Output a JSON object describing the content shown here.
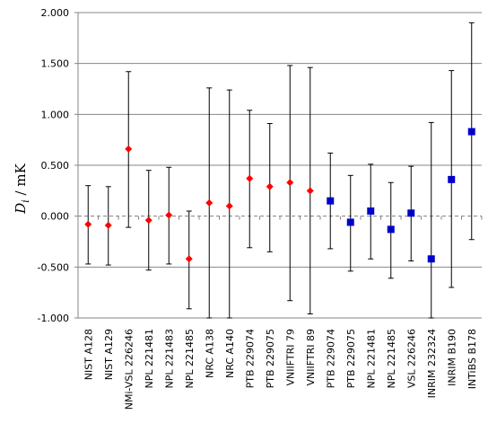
{
  "chart_data": {
    "type": "scatter",
    "ylabel_main": "D",
    "ylabel_sub": "i",
    "ylabel_unit": " / mK",
    "ylim": [
      -1.0,
      2.0
    ],
    "yticks": [
      2.0,
      1.5,
      1.0,
      0.5,
      0.0,
      -0.5,
      -1.0
    ],
    "ytick_labels": [
      "2.000",
      "1.500",
      "1.000",
      "0.500",
      "0.000",
      "-0.500",
      "-1.000"
    ],
    "grid": true,
    "zero_line": "dashed",
    "categories": [
      "NIST A128",
      "NIST A129",
      "NMi-VSL 226246",
      "NPL 221481",
      "NPL 221483",
      "NPL 221485",
      "NRC A138",
      "NRC A140",
      "PTB 229074",
      "PTB 229075",
      "VNIIFTRI 79",
      "VNIIFTRI 89",
      "PTB 229074",
      "PTB 229075",
      "NPL 221481",
      "NPL 221485",
      "VSL 226246",
      "INRIM 232324",
      "INRIM B190",
      "INTiBS B178"
    ],
    "series": [
      {
        "marker": "diamond",
        "color": "#ff0000",
        "values": [
          -0.08,
          -0.09,
          0.66,
          -0.04,
          0.01,
          -0.42,
          0.13,
          0.1,
          0.37,
          0.29,
          0.33,
          0.25,
          null,
          null,
          null,
          null,
          null,
          null,
          null,
          null
        ],
        "err_low": [
          -0.47,
          -0.48,
          -0.11,
          -0.53,
          -0.47,
          -0.91,
          -1.0,
          -1.0,
          -0.31,
          -0.35,
          -0.83,
          -0.96,
          null,
          null,
          null,
          null,
          null,
          null,
          null,
          null
        ],
        "err_high": [
          0.3,
          0.29,
          1.42,
          0.45,
          0.48,
          0.05,
          1.26,
          1.24,
          1.04,
          0.91,
          1.48,
          1.46,
          null,
          null,
          null,
          null,
          null,
          null,
          null,
          null
        ]
      },
      {
        "marker": "square",
        "color": "#0000cc",
        "values": [
          null,
          null,
          null,
          null,
          null,
          null,
          null,
          null,
          null,
          null,
          null,
          null,
          0.15,
          -0.06,
          0.05,
          -0.13,
          0.03,
          -0.42,
          0.36,
          0.83
        ],
        "err_low": [
          null,
          null,
          null,
          null,
          null,
          null,
          null,
          null,
          null,
          null,
          null,
          null,
          -0.32,
          -0.54,
          -0.42,
          -0.61,
          -0.44,
          -1.0,
          -0.7,
          -0.23
        ],
        "err_high": [
          null,
          null,
          null,
          null,
          null,
          null,
          null,
          null,
          null,
          null,
          null,
          null,
          0.62,
          0.4,
          0.51,
          0.33,
          0.49,
          0.92,
          1.43,
          1.9
        ]
      }
    ]
  }
}
